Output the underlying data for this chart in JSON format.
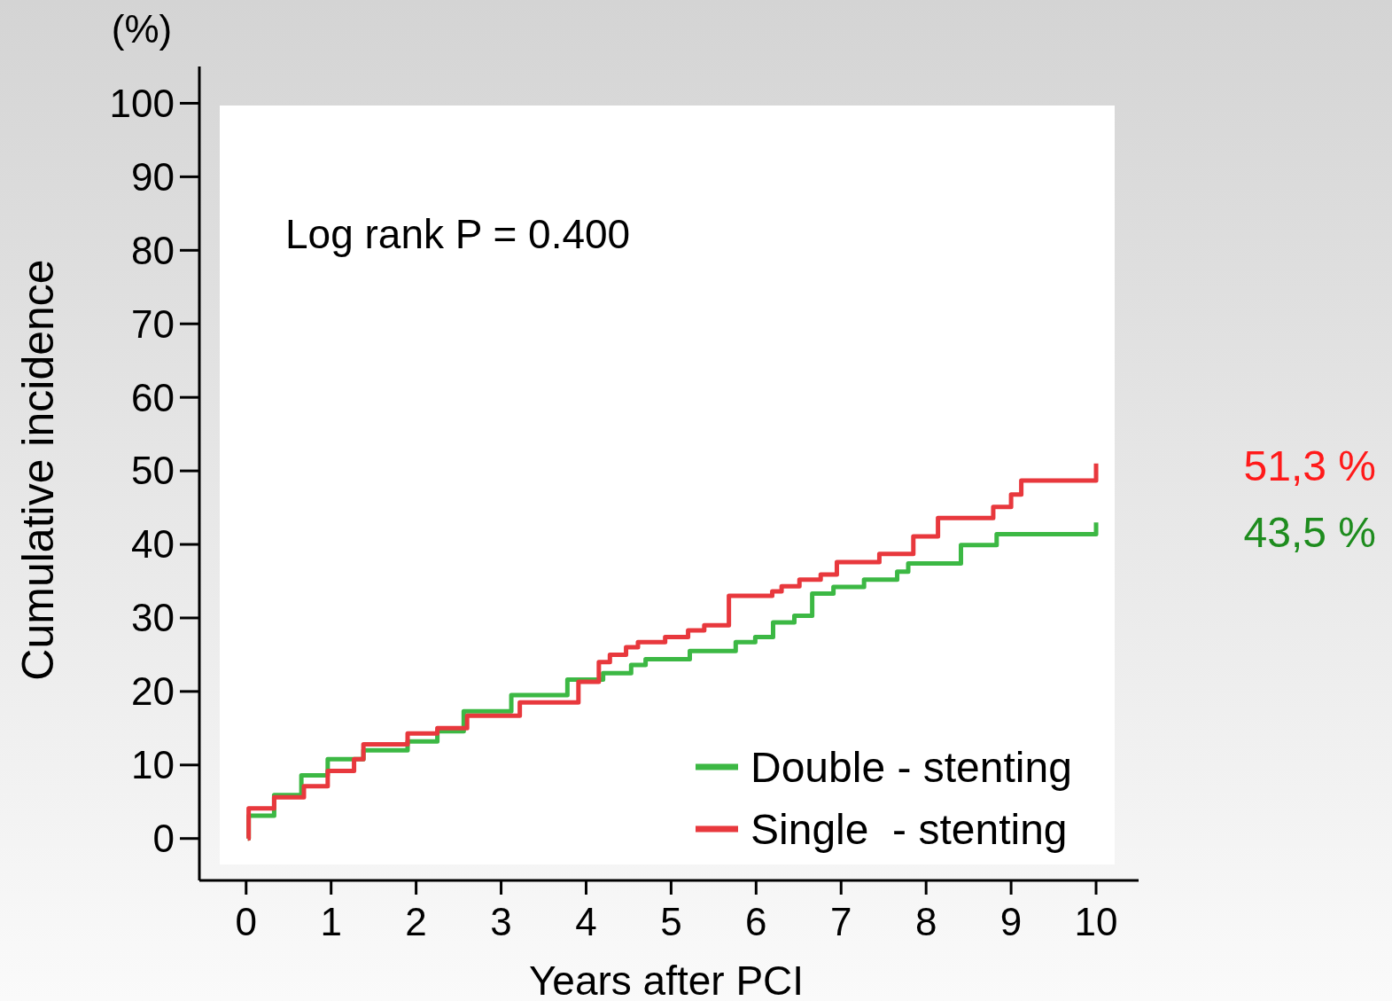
{
  "chart_data": {
    "type": "step",
    "ylabel": "Cumulative incidence",
    "xlabel": "Years after PCI",
    "annotations": [
      "(%)",
      "Log rank P = 0.400",
      "43,5 %",
      "51,3 %"
    ],
    "xlim": [
      -0.55,
      10.5
    ],
    "xticks": [
      0,
      1,
      2,
      3,
      4,
      5,
      6,
      7,
      8,
      9,
      10
    ],
    "ylim": [
      -5.7,
      105
    ],
    "yticks": [
      0,
      10,
      20,
      30,
      40,
      50,
      60,
      70,
      80,
      90,
      100
    ],
    "grid": false,
    "legend": "bottom right",
    "line_style": "solid",
    "marker": "none",
    "series": [
      {
        "name": "Double - stenting",
        "color": "#3cb844",
        "x": [
          0.02,
          0.03,
          0.33,
          0.65,
          0.96,
          1.38,
          1.9,
          2.25,
          2.56,
          3.12,
          3.78,
          4.2,
          4.53,
          4.7,
          5.22,
          5.76,
          5.99,
          6.2,
          6.45,
          6.66,
          6.91,
          7.27,
          7.66,
          7.79,
          8.41,
          8.83,
          10
        ],
        "values": [
          0,
          3.1,
          5.9,
          8.6,
          10.8,
          12,
          13.2,
          14.6,
          17.3,
          19.5,
          21.6,
          22.5,
          23.6,
          24.4,
          25.5,
          26.7,
          27.4,
          29.4,
          30.3,
          33.3,
          34.2,
          35.2,
          36.3,
          37.4,
          39.9,
          41.4,
          43
        ]
      },
      {
        "name": "Single  - stenting",
        "color": "#e8383d",
        "x": [
          0.02,
          0.03,
          0.33,
          0.68,
          0.96,
          1.27,
          1.38,
          1.9,
          2.25,
          2.6,
          3.22,
          3.91,
          4.15,
          4.28,
          4.47,
          4.61,
          4.93,
          5.2,
          5.39,
          5.68,
          6.19,
          6.3,
          6.51,
          6.76,
          6.95,
          7.45,
          7.85,
          8.14,
          8.79,
          9,
          9.12,
          10
        ],
        "values": [
          0,
          4.1,
          5.6,
          7.1,
          9.2,
          10.8,
          12.8,
          14.3,
          15,
          16.7,
          18.5,
          21.3,
          24,
          25,
          26,
          26.7,
          27.4,
          28.3,
          29,
          33,
          33.6,
          34.3,
          35.2,
          35.9,
          37.6,
          38.7,
          41.1,
          43.6,
          45.1,
          46.8,
          48.7,
          51
        ]
      }
    ]
  }
}
